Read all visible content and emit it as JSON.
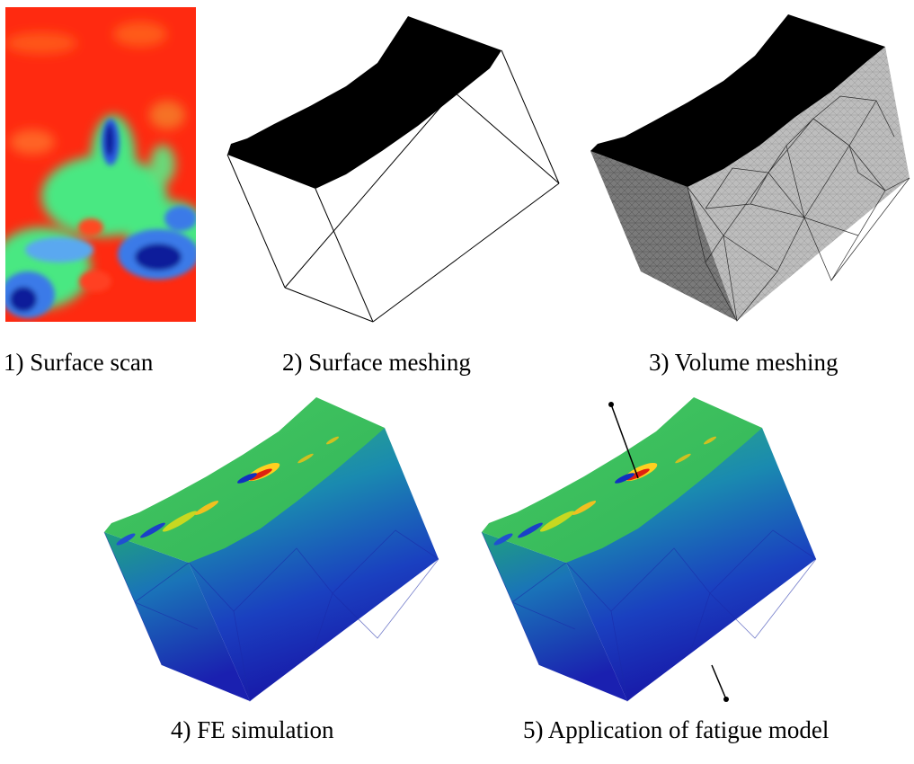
{
  "steps": [
    {
      "number": "1)",
      "label": "Surface scan",
      "caption": "1) Surface scan"
    },
    {
      "number": "2)",
      "label": "Surface meshing",
      "caption": "2) Surface meshing"
    },
    {
      "number": "3)",
      "label": "Volume meshing",
      "caption": "3) Volume meshing"
    },
    {
      "number": "4)",
      "label": "FE simulation",
      "caption": "4) FE simulation"
    },
    {
      "number": "5)",
      "label": "Application of fatigue model",
      "caption": "5) Application of fatigue model"
    }
  ],
  "colors": {
    "scan_high": "#ff2a10",
    "scan_mid": "#48e882",
    "scan_low": "#1020c8",
    "mesh_top": "#000000",
    "mesh_side_light": "#bdbdbd",
    "mesh_side_dark": "#6e6e6e",
    "fe_top": "#3cc060",
    "fe_front": "#1a8fa8",
    "fe_bottom": "#1a1eb8"
  }
}
